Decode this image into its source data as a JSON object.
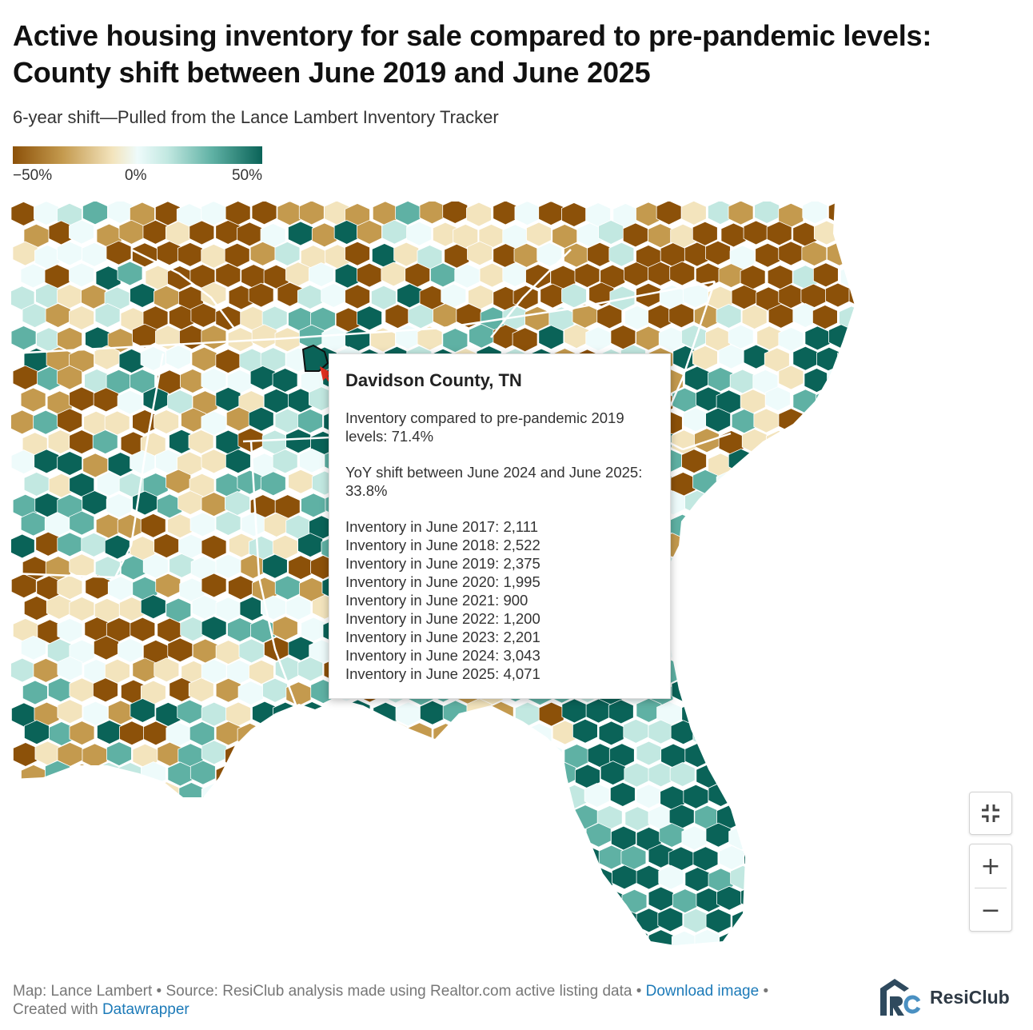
{
  "title": "Active housing inventory for sale compared to pre-pandemic levels: County shift between June 2019 and June 2025",
  "subtitle": "6-year shift—Pulled from the Lance Lambert Inventory Tracker",
  "legend": {
    "min_label": "−50%",
    "mid_label": "0%",
    "max_label": "50%",
    "colors": [
      "#8c5109",
      "#c49a4e",
      "#f3e4bd",
      "#eefbfb",
      "#c2e8e1",
      "#5fb1a4",
      "#0a6358"
    ]
  },
  "tooltip": {
    "county": "Davidson County, TN",
    "vs_prepandemic": "Inventory compared to pre-pandemic 2019 levels: 71.4%",
    "yoy": "YoY shift between June 2024 and June 2025: 33.8%",
    "history": [
      "Inventory in June 2017: 2,111",
      "Inventory in June 2018: 2,522",
      "Inventory in June 2019: 2,375",
      "Inventory in June 2020: 1,995",
      "Inventory in June 2021: 900",
      "Inventory in June 2022: 1,200",
      "Inventory in June 2023: 2,201",
      "Inventory in June 2024: 3,043",
      "Inventory in June 2025: 4,071"
    ]
  },
  "controls": {
    "fit_icon": "fullscreen-exit-icon",
    "zoom_in": "+",
    "zoom_out": "−"
  },
  "footer": {
    "credit": "Map: Lance Lambert • Source: ResiClub analysis made using Realtor.com active listing data • ",
    "download": "Download image",
    "sep": " •",
    "created": "Created with ",
    "tool": "Datawrapper"
  },
  "logo": {
    "text": "ResiClub",
    "mark_color": "#2f4a5e"
  }
}
